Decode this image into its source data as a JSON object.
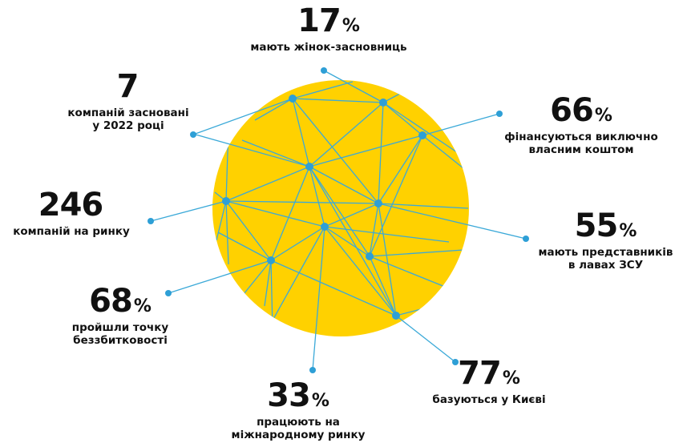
{
  "colors": {
    "circle": "#FFD100",
    "lines": "#3BA9D8",
    "dots": "#2E9FD6",
    "text": "#111111"
  },
  "stats": [
    {
      "id": "women-founders",
      "value": "17",
      "unit": "%",
      "label": [
        "мають жінок-засновниць"
      ]
    },
    {
      "id": "founded-2022",
      "value": "7",
      "unit": "",
      "label": [
        "компаній засновані",
        "у 2022 році"
      ]
    },
    {
      "id": "self-funded",
      "value": "66",
      "unit": "%",
      "label": [
        "фінансуються виключно",
        "власним коштом"
      ]
    },
    {
      "id": "companies-on-market",
      "value": "246",
      "unit": "",
      "label": [
        "компаній на ринку"
      ]
    },
    {
      "id": "zsu-representatives",
      "value": "55",
      "unit": "%",
      "label": [
        "мають представників",
        "в лавах ЗСУ"
      ]
    },
    {
      "id": "break-even",
      "value": "68",
      "unit": "%",
      "label": [
        "пройшли точку",
        "беззбитковості"
      ]
    },
    {
      "id": "kyiv-based",
      "value": "77",
      "unit": "%",
      "label": [
        "базуються у Києві"
      ]
    },
    {
      "id": "international",
      "value": "33",
      "unit": "%",
      "label": [
        "працюють на",
        "міжнародному ринку"
      ]
    }
  ]
}
